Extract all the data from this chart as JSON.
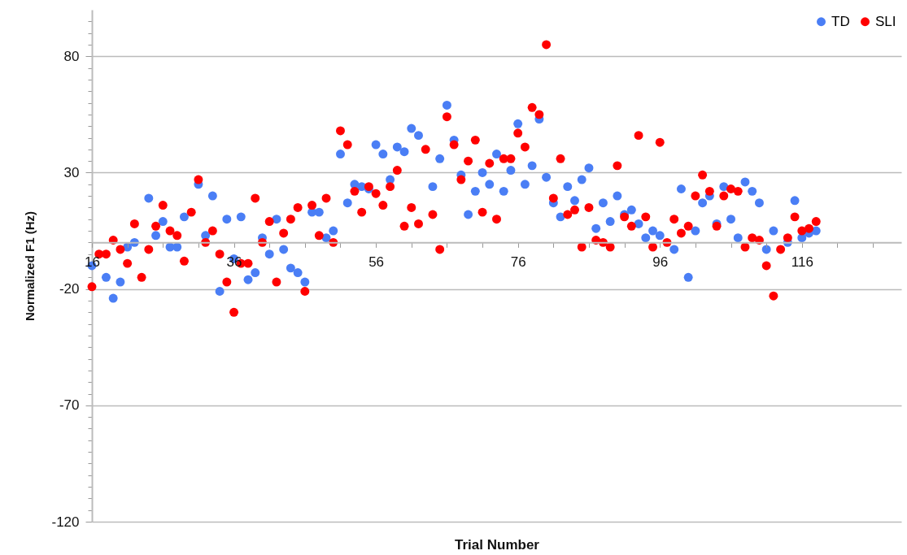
{
  "chart_data": {
    "type": "scatter",
    "xlabel": "Trial Number",
    "ylabel": "Normalized F1 (Hz)",
    "xlim": [
      16,
      130
    ],
    "ylim": [
      -120,
      100
    ],
    "xticks": [
      16,
      {
        "value": 21,
        "label": null
      },
      {
        "value": 26,
        "label": null
      },
      {
        "value": 31,
        "label": null
      },
      36,
      {
        "value": 41,
        "label": null
      },
      {
        "value": 46,
        "label": null
      },
      {
        "value": 51,
        "label": null
      },
      56,
      {
        "value": 61,
        "label": null
      },
      {
        "value": 66,
        "label": null
      },
      {
        "value": 71,
        "label": null
      },
      76,
      {
        "value": 81,
        "label": null
      },
      {
        "value": 86,
        "label": null
      },
      {
        "value": 91,
        "label": null
      },
      96,
      {
        "value": 101,
        "label": null
      },
      {
        "value": 106,
        "label": null
      },
      {
        "value": 111,
        "label": null
      },
      116,
      {
        "value": 121,
        "label": null
      },
      {
        "value": 126,
        "label": null
      }
    ],
    "yticks": [
      -120,
      {
        "value": -115,
        "label": null
      },
      {
        "value": -110,
        "label": null
      },
      {
        "value": -105,
        "label": null
      },
      {
        "value": -100,
        "label": null
      },
      {
        "value": -95,
        "label": null
      },
      {
        "value": -90,
        "label": null
      },
      {
        "value": -85,
        "label": null
      },
      {
        "value": -80,
        "label": null
      },
      {
        "value": -75,
        "label": null
      },
      -70,
      {
        "value": -65,
        "label": null
      },
      {
        "value": -60,
        "label": null
      },
      {
        "value": -55,
        "label": null
      },
      {
        "value": -50,
        "label": null
      },
      {
        "value": -45,
        "label": null
      },
      {
        "value": -40,
        "label": null
      },
      {
        "value": -35,
        "label": null
      },
      {
        "value": -30,
        "label": null
      },
      {
        "value": -25,
        "label": null
      },
      -20,
      {
        "value": -15,
        "label": null
      },
      {
        "value": -10,
        "label": null
      },
      {
        "value": -5,
        "label": null
      },
      {
        "value": 0,
        "label": null
      },
      {
        "value": 5,
        "label": null
      },
      {
        "value": 10,
        "label": null
      },
      {
        "value": 15,
        "label": null
      },
      {
        "value": 20,
        "label": null
      },
      {
        "value": 25,
        "label": null
      },
      30,
      {
        "value": 35,
        "label": null
      },
      {
        "value": 40,
        "label": null
      },
      {
        "value": 45,
        "label": null
      },
      {
        "value": 50,
        "label": null
      },
      {
        "value": 55,
        "label": null
      },
      {
        "value": 60,
        "label": null
      },
      {
        "value": 65,
        "label": null
      },
      {
        "value": 70,
        "label": null
      },
      {
        "value": 75,
        "label": null
      },
      80,
      {
        "value": 85,
        "label": null
      },
      {
        "value": 90,
        "label": null
      },
      {
        "value": 95,
        "label": null
      }
    ],
    "grid": "y",
    "legend": "top right",
    "marker": "circle",
    "series": [
      {
        "name": "TD",
        "color": "#4a7ef5",
        "x": [
          16,
          18,
          19,
          20,
          21,
          22,
          24,
          25,
          26,
          27,
          28,
          29,
          31,
          32,
          33,
          34,
          35,
          36,
          37,
          38,
          39,
          40,
          41,
          42,
          43,
          44,
          45,
          46,
          47,
          48,
          49,
          50,
          51,
          52,
          53,
          54,
          55,
          56,
          57,
          58,
          59,
          60,
          61,
          62,
          64,
          65,
          66,
          67,
          68,
          69,
          70,
          71,
          72,
          73,
          74,
          75,
          76,
          77,
          78,
          79,
          80,
          81,
          82,
          83,
          84,
          85,
          86,
          87,
          88,
          89,
          90,
          91,
          92,
          93,
          94,
          95,
          96,
          98,
          99,
          100,
          101,
          102,
          103,
          104,
          105,
          106,
          107,
          108,
          109,
          110,
          111,
          112,
          114,
          115,
          116,
          117,
          118
        ],
        "values": [
          -10,
          -15,
          -24,
          -17,
          -2,
          0,
          19,
          3,
          9,
          -2,
          -2,
          11,
          25,
          3,
          20,
          -21,
          10,
          -7,
          11,
          -16,
          -13,
          2,
          -5,
          10,
          -3,
          -11,
          -13,
          -17,
          13,
          13,
          2,
          5,
          38,
          17,
          25,
          24,
          23,
          42,
          38,
          27,
          41,
          39,
          49,
          46,
          24,
          36,
          59,
          44,
          29,
          12,
          22,
          30,
          25,
          38,
          22,
          31,
          51,
          25,
          33,
          53,
          28,
          17,
          11,
          24,
          18,
          27,
          32,
          6,
          17,
          9,
          20,
          12,
          14,
          8,
          2,
          5,
          3,
          -3,
          23,
          -15,
          5,
          17,
          20,
          8,
          24,
          10,
          2,
          26,
          22,
          17,
          -3,
          5,
          0,
          18,
          2,
          4,
          5
        ]
      },
      {
        "name": "SLI",
        "color": "#ff0000",
        "x": [
          16,
          17,
          18,
          19,
          20,
          21,
          22,
          23,
          24,
          25,
          26,
          27,
          28,
          29,
          30,
          31,
          32,
          33,
          34,
          35,
          36,
          37,
          38,
          39,
          40,
          41,
          42,
          43,
          44,
          45,
          46,
          47,
          48,
          49,
          50,
          51,
          52,
          53,
          54,
          55,
          56,
          57,
          58,
          59,
          60,
          61,
          62,
          63,
          64,
          65,
          66,
          67,
          68,
          69,
          70,
          71,
          72,
          73,
          74,
          75,
          76,
          77,
          78,
          79,
          80,
          81,
          82,
          83,
          84,
          85,
          86,
          87,
          88,
          89,
          90,
          91,
          92,
          93,
          94,
          95,
          96,
          97,
          98,
          99,
          100,
          101,
          102,
          103,
          104,
          105,
          106,
          107,
          108,
          109,
          110,
          111,
          112,
          113,
          114,
          115,
          116,
          117,
          118
        ],
        "values": [
          -19,
          -5,
          -5,
          1,
          -3,
          -9,
          8,
          -15,
          -3,
          7,
          16,
          5,
          3,
          -8,
          13,
          27,
          0,
          5,
          -5,
          -17,
          -30,
          -9,
          -9,
          19,
          0,
          9,
          -17,
          4,
          10,
          15,
          -21,
          16,
          3,
          19,
          0,
          48,
          42,
          22,
          13,
          24,
          21,
          16,
          24,
          31,
          7,
          15,
          8,
          40,
          12,
          -3,
          54,
          42,
          27,
          35,
          44,
          13,
          34,
          10,
          36,
          36,
          47,
          41,
          58,
          55,
          85,
          19,
          36,
          12,
          14,
          -2,
          15,
          1,
          0,
          -2,
          33,
          11,
          7,
          46,
          11,
          -2,
          43,
          0,
          10,
          4,
          7,
          20,
          29,
          22,
          7,
          20,
          23,
          22,
          -2,
          2,
          1,
          -10,
          -23,
          -3,
          2,
          11,
          5,
          6,
          9
        ]
      }
    ]
  }
}
